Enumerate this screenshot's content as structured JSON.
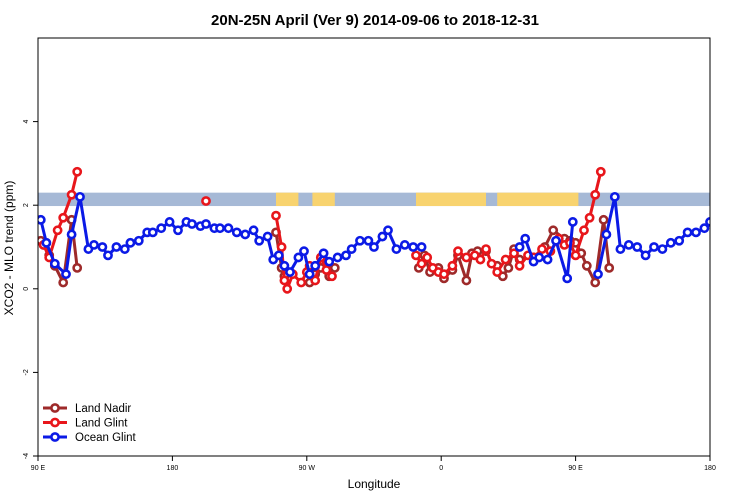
{
  "chart_data": {
    "type": "line",
    "title": "20N-25N April (Ver 9)   2014-09-06 to 2018-12-31",
    "xlabel": "Longitude",
    "ylabel": "XCO2 - MLO trend (ppm)",
    "xlim": [
      0,
      240
    ],
    "ylim": [
      -4,
      6
    ],
    "xticks": [
      {
        "v": 0,
        "label": "90 E"
      },
      {
        "v": 48,
        "label": "180"
      },
      {
        "v": 96,
        "label": "90 W"
      },
      {
        "v": 144,
        "label": "0"
      },
      {
        "v": 192,
        "label": "90 E"
      },
      {
        "v": 240,
        "label": "180"
      }
    ],
    "yticks": [
      {
        "v": -4,
        "label": "-4"
      },
      {
        "v": -2,
        "label": "-2"
      },
      {
        "v": 0,
        "label": "0"
      },
      {
        "v": 2,
        "label": "2"
      },
      {
        "v": 4,
        "label": "4"
      }
    ],
    "grid": false,
    "legend": "bottom-left",
    "land_band": {
      "y_range": [
        1.98,
        2.3
      ],
      "ocean_color": "#a6b9d6",
      "land_color": "#f8d36f",
      "land_segments": [
        [
          85,
          93
        ],
        [
          98,
          106
        ],
        [
          135,
          160
        ],
        [
          164,
          193
        ]
      ]
    },
    "series": [
      {
        "name": "Land Nadir",
        "color": "#9e2a2a",
        "segments": [
          [
            [
              1,
              1.15
            ],
            [
              2,
              1.05
            ],
            [
              4,
              0.8
            ],
            [
              6,
              0.55
            ],
            [
              9,
              0.15
            ],
            [
              12,
              1.65
            ],
            [
              14,
              0.5
            ]
          ],
          [
            [
              85,
              1.35
            ],
            [
              87,
              0.5
            ],
            [
              88,
              0.3
            ]
          ],
          [
            [
              97,
              0.15
            ],
            [
              99,
              0.35
            ],
            [
              101,
              0.5
            ],
            [
              103,
              0.6
            ],
            [
              104,
              0.3
            ],
            [
              106,
              0.5
            ]
          ],
          [
            [
              136,
              0.5
            ],
            [
              138,
              0.8
            ],
            [
              140,
              0.4
            ],
            [
              143,
              0.5
            ],
            [
              145,
              0.25
            ],
            [
              148,
              0.45
            ],
            [
              150,
              0.8
            ],
            [
              153,
              0.2
            ],
            [
              155,
              0.85
            ],
            [
              157,
              0.9
            ],
            [
              160,
              0.9
            ]
          ],
          [
            [
              164,
              0.55
            ],
            [
              166,
              0.3
            ],
            [
              168,
              0.5
            ],
            [
              170,
              0.95
            ],
            [
              172,
              0.7
            ],
            [
              177,
              0.75
            ],
            [
              181,
              1.0
            ],
            [
              184,
              1.4
            ],
            [
              188,
              1.2
            ],
            [
              190,
              1.15
            ],
            [
              192,
              1.1
            ],
            [
              194,
              0.85
            ],
            [
              196,
              0.55
            ],
            [
              199,
              0.15
            ],
            [
              202,
              1.65
            ],
            [
              204,
              0.5
            ]
          ]
        ]
      },
      {
        "name": "Land Glint",
        "color": "#e8161b",
        "segments": [
          [
            [
              2,
              1.05
            ],
            [
              4,
              0.75
            ],
            [
              7,
              1.4
            ],
            [
              9,
              1.7
            ],
            [
              12,
              2.25
            ],
            [
              14,
              2.8
            ]
          ],
          [
            [
              60,
              2.1
            ]
          ],
          [
            [
              85,
              1.75
            ],
            [
              87,
              1.0
            ],
            [
              88,
              0.2
            ],
            [
              89,
              0.0
            ],
            [
              91,
              0.35
            ],
            [
              94,
              0.15
            ],
            [
              96,
              0.4
            ],
            [
              97,
              0.55
            ],
            [
              99,
              0.2
            ],
            [
              101,
              0.75
            ],
            [
              103,
              0.45
            ],
            [
              105,
              0.3
            ]
          ],
          [
            [
              135,
              0.8
            ],
            [
              137,
              0.6
            ],
            [
              139,
              0.75
            ],
            [
              141,
              0.5
            ],
            [
              143,
              0.4
            ],
            [
              145,
              0.35
            ],
            [
              148,
              0.55
            ],
            [
              150,
              0.9
            ],
            [
              153,
              0.75
            ],
            [
              156,
              0.8
            ],
            [
              158,
              0.7
            ],
            [
              160,
              0.95
            ],
            [
              162,
              0.6
            ],
            [
              164,
              0.4
            ],
            [
              167,
              0.7
            ],
            [
              170,
              0.85
            ],
            [
              172,
              0.55
            ],
            [
              175,
              0.8
            ],
            [
              177,
              0.75
            ],
            [
              180,
              0.95
            ],
            [
              183,
              0.9
            ],
            [
              186,
              1.2
            ],
            [
              188,
              1.05
            ],
            [
              190,
              1.1
            ],
            [
              192,
              0.8
            ],
            [
              195,
              1.4
            ],
            [
              197,
              1.7
            ],
            [
              199,
              2.25
            ],
            [
              201,
              2.8
            ]
          ]
        ]
      },
      {
        "name": "Ocean Glint",
        "color": "#0b1ae6",
        "segments": [
          [
            [
              1,
              1.65
            ],
            [
              3,
              1.1
            ],
            [
              6,
              0.6
            ],
            [
              10,
              0.35
            ],
            [
              12,
              1.3
            ],
            [
              15,
              2.2
            ],
            [
              18,
              0.95
            ],
            [
              20,
              1.05
            ],
            [
              23,
              1.0
            ],
            [
              25,
              0.8
            ],
            [
              28,
              1.0
            ],
            [
              31,
              0.95
            ],
            [
              33,
              1.1
            ],
            [
              36,
              1.15
            ],
            [
              39,
              1.35
            ],
            [
              41,
              1.35
            ],
            [
              44,
              1.45
            ],
            [
              47,
              1.6
            ],
            [
              50,
              1.4
            ],
            [
              53,
              1.6
            ],
            [
              55,
              1.55
            ],
            [
              58,
              1.5
            ],
            [
              60,
              1.55
            ],
            [
              63,
              1.45
            ],
            [
              65,
              1.45
            ],
            [
              68,
              1.45
            ],
            [
              71,
              1.35
            ],
            [
              74,
              1.3
            ],
            [
              77,
              1.4
            ],
            [
              79,
              1.15
            ],
            [
              82,
              1.25
            ],
            [
              84,
              0.7
            ],
            [
              86,
              0.8
            ],
            [
              88,
              0.55
            ],
            [
              90,
              0.4
            ],
            [
              93,
              0.75
            ],
            [
              95,
              0.9
            ],
            [
              97,
              0.35
            ],
            [
              99,
              0.55
            ],
            [
              102,
              0.85
            ],
            [
              104,
              0.65
            ],
            [
              107,
              0.75
            ],
            [
              110,
              0.8
            ],
            [
              112,
              0.95
            ],
            [
              115,
              1.15
            ],
            [
              118,
              1.15
            ],
            [
              120,
              1.0
            ],
            [
              123,
              1.25
            ],
            [
              125,
              1.4
            ],
            [
              128,
              0.95
            ],
            [
              131,
              1.05
            ],
            [
              134,
              1.0
            ],
            [
              137,
              1.0
            ]
          ],
          [
            [
              172,
              1.0
            ],
            [
              174,
              1.2
            ],
            [
              177,
              0.65
            ],
            [
              179,
              0.75
            ],
            [
              182,
              0.7
            ],
            [
              185,
              1.15
            ],
            [
              189,
              0.25
            ],
            [
              191,
              1.6
            ]
          ],
          [
            [
              200,
              0.35
            ],
            [
              203,
              1.3
            ],
            [
              206,
              2.2
            ],
            [
              208,
              0.95
            ],
            [
              211,
              1.05
            ],
            [
              214,
              1.0
            ],
            [
              217,
              0.8
            ],
            [
              220,
              1.0
            ],
            [
              223,
              0.95
            ],
            [
              226,
              1.1
            ],
            [
              229,
              1.15
            ],
            [
              232,
              1.35
            ],
            [
              235,
              1.35
            ],
            [
              238,
              1.45
            ],
            [
              240,
              1.6
            ]
          ]
        ]
      }
    ]
  }
}
